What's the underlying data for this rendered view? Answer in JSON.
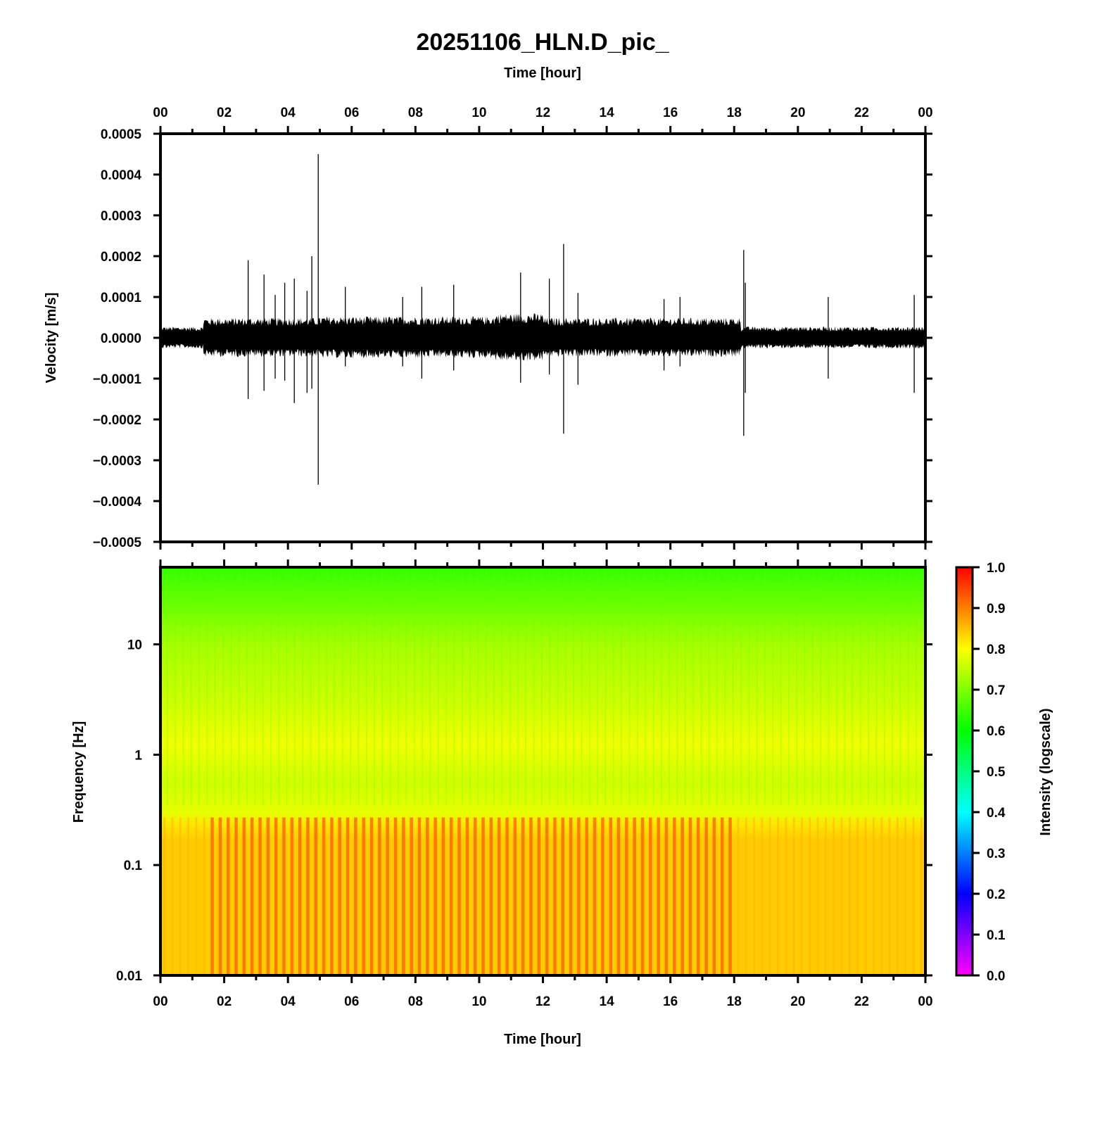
{
  "figure": {
    "title": "20251106_HLN.D_pic_",
    "top_xlabel": "Time [hour]",
    "bottom_xlabel": "Time [hour]"
  },
  "chart_data": [
    {
      "type": "line",
      "name": "seismogram",
      "xlabel": "Time [hour]",
      "ylabel": "Velocity [m/s]",
      "xlim": [
        0,
        24
      ],
      "ylim": [
        -0.0005,
        0.0005
      ],
      "x_ticks": [
        "00",
        "02",
        "04",
        "06",
        "08",
        "10",
        "12",
        "14",
        "16",
        "18",
        "20",
        "22",
        "00"
      ],
      "y_ticks": [
        "0.0005",
        "0.0004",
        "0.0003",
        "0.0002",
        "0.0001",
        "0.0000",
        "−0.0001",
        "−0.0002",
        "−0.0003",
        "−0.0004",
        "−0.0005"
      ],
      "noise_envelope": [
        {
          "start_hour": 0.0,
          "end_hour": 1.35,
          "amplitude": 2.5e-05
        },
        {
          "start_hour": 1.35,
          "end_hour": 5.0,
          "amplitude": 4.5e-05
        },
        {
          "start_hour": 5.0,
          "end_hour": 10.5,
          "amplitude": 4.8e-05
        },
        {
          "start_hour": 10.5,
          "end_hour": 12.0,
          "amplitude": 5.5e-05
        },
        {
          "start_hour": 12.0,
          "end_hour": 18.2,
          "amplitude": 4.5e-05
        },
        {
          "start_hour": 18.2,
          "end_hour": 24.0,
          "amplitude": 2.5e-05
        }
      ],
      "spikes": [
        {
          "hour": 2.75,
          "max": 0.00019,
          "min": -0.00015
        },
        {
          "hour": 3.25,
          "max": 0.000155,
          "min": -0.00013
        },
        {
          "hour": 3.6,
          "max": 0.000105,
          "min": -0.0001
        },
        {
          "hour": 3.9,
          "max": 0.000135,
          "min": -0.000105
        },
        {
          "hour": 4.2,
          "max": 0.000145,
          "min": -0.00016
        },
        {
          "hour": 4.6,
          "max": 0.000115,
          "min": -0.000135
        },
        {
          "hour": 4.75,
          "max": 0.0002,
          "min": -0.000125
        },
        {
          "hour": 4.95,
          "max": 0.00045,
          "min": -0.00036
        },
        {
          "hour": 5.8,
          "max": 0.000125,
          "min": -7e-05
        },
        {
          "hour": 7.6,
          "max": 0.0001,
          "min": -7e-05
        },
        {
          "hour": 8.2,
          "max": 0.000125,
          "min": -0.0001
        },
        {
          "hour": 9.2,
          "max": 0.00013,
          "min": -8e-05
        },
        {
          "hour": 11.3,
          "max": 0.00016,
          "min": -0.00011
        },
        {
          "hour": 12.2,
          "max": 0.000145,
          "min": -9e-05
        },
        {
          "hour": 12.65,
          "max": 0.00023,
          "min": -0.000235
        },
        {
          "hour": 13.1,
          "max": 0.00011,
          "min": -0.000115
        },
        {
          "hour": 15.8,
          "max": 9.5e-05,
          "min": -8e-05
        },
        {
          "hour": 16.3,
          "max": 0.0001,
          "min": -7e-05
        },
        {
          "hour": 18.3,
          "max": 0.000215,
          "min": -0.00024
        },
        {
          "hour": 18.35,
          "max": 0.000135,
          "min": -0.000135
        },
        {
          "hour": 20.95,
          "max": 0.0001,
          "min": -0.0001
        },
        {
          "hour": 23.65,
          "max": 0.000105,
          "min": -0.000135
        }
      ]
    },
    {
      "type": "heatmap",
      "name": "spectrogram",
      "xlabel": "Time [hour]",
      "ylabel": "Frequency [Hz]",
      "xlim": [
        0,
        24
      ],
      "ylim": [
        0.01,
        50
      ],
      "y_scale": "log",
      "x_ticks": [
        "00",
        "02",
        "04",
        "06",
        "08",
        "10",
        "12",
        "14",
        "16",
        "18",
        "20",
        "22",
        "00"
      ],
      "y_ticks": [
        "10",
        "1",
        "0.1",
        "0.01"
      ],
      "colorbar": {
        "label": "Intensity (logscale)",
        "range": [
          0.0,
          1.0
        ],
        "ticks": [
          "1.0",
          "0.9",
          "0.8",
          "0.7",
          "0.6",
          "0.5",
          "0.4",
          "0.3",
          "0.2",
          "0.1",
          "0.0"
        ],
        "colors": [
          "#ff00ff",
          "#0000ff",
          "#00ffff",
          "#00ff00",
          "#ffff00",
          "#ff0000"
        ]
      },
      "intensity_profile": [
        {
          "frequency_hz": 50,
          "intensity": 0.64
        },
        {
          "frequency_hz": 20,
          "intensity": 0.69
        },
        {
          "frequency_hz": 10,
          "intensity": 0.73
        },
        {
          "frequency_hz": 3,
          "intensity": 0.76
        },
        {
          "frequency_hz": 1.2,
          "intensity": 0.79
        },
        {
          "frequency_hz": 0.6,
          "intensity": 0.76
        },
        {
          "frequency_hz": 0.3,
          "intensity": 0.78
        },
        {
          "frequency_hz": 0.2,
          "intensity": 0.84
        },
        {
          "frequency_hz": 0.01,
          "intensity": 0.84
        }
      ],
      "low_frequency_band": {
        "below_hz": 0.27,
        "strong_start_hour": 1.5,
        "strong_end_hour": 18.0,
        "peak_intensity": 0.93
      },
      "stripe_period_hour": 0.25
    }
  ]
}
